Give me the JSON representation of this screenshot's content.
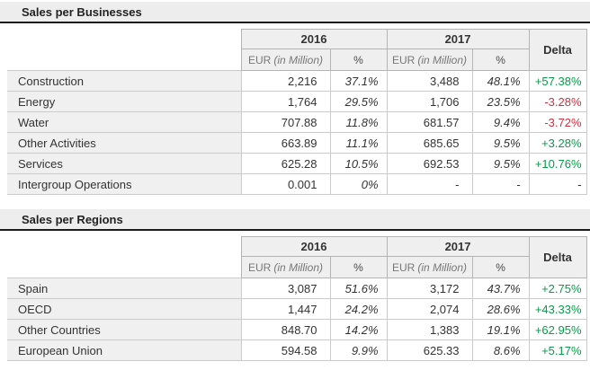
{
  "colors": {
    "positive": "#0a9a4a",
    "negative": "#d22f3f",
    "neutral": "#333333"
  },
  "tables": [
    {
      "title": "Sales per Businesses",
      "year_2016": "2016",
      "year_2017": "2017",
      "delta_label": "Delta",
      "eur_label": "EUR",
      "eur_unit": "(in Million)",
      "pct_label": "%",
      "rows": [
        {
          "label": "Construction",
          "eur_2016": "2,216",
          "pct_2016": "37.1%",
          "eur_2017": "3,488",
          "pct_2017": "48.1%",
          "delta": "+57.38%",
          "trend": "up"
        },
        {
          "label": "Energy",
          "eur_2016": "1,764",
          "pct_2016": "29.5%",
          "eur_2017": "1,706",
          "pct_2017": "23.5%",
          "delta": "-3.28%",
          "trend": "down"
        },
        {
          "label": "Water",
          "eur_2016": "707.88",
          "pct_2016": "11.8%",
          "eur_2017": "681.57",
          "pct_2017": "9.4%",
          "delta": "-3.72%",
          "trend": "down"
        },
        {
          "label": "Other Activities",
          "eur_2016": "663.89",
          "pct_2016": "11.1%",
          "eur_2017": "685.65",
          "pct_2017": "9.5%",
          "delta": "+3.28%",
          "trend": "up"
        },
        {
          "label": "Services",
          "eur_2016": "625.28",
          "pct_2016": "10.5%",
          "eur_2017": "692.53",
          "pct_2017": "9.5%",
          "delta": "+10.76%",
          "trend": "up"
        },
        {
          "label": "Intergroup Operations",
          "eur_2016": "0.001",
          "pct_2016": "0%",
          "eur_2017": "-",
          "pct_2017": "-",
          "delta": "-",
          "trend": "flat"
        }
      ]
    },
    {
      "title": "Sales per Regions",
      "year_2016": "2016",
      "year_2017": "2017",
      "delta_label": "Delta",
      "eur_label": "EUR",
      "eur_unit": "(in Million)",
      "pct_label": "%",
      "rows": [
        {
          "label": "Spain",
          "eur_2016": "3,087",
          "pct_2016": "51.6%",
          "eur_2017": "3,172",
          "pct_2017": "43.7%",
          "delta": "+2.75%",
          "trend": "up"
        },
        {
          "label": "OECD",
          "eur_2016": "1,447",
          "pct_2016": "24.2%",
          "eur_2017": "2,074",
          "pct_2017": "28.6%",
          "delta": "+43.33%",
          "trend": "up"
        },
        {
          "label": "Other Countries",
          "eur_2016": "848.70",
          "pct_2016": "14.2%",
          "eur_2017": "1,383",
          "pct_2017": "19.1%",
          "delta": "+62.95%",
          "trend": "up"
        },
        {
          "label": "European Union",
          "eur_2016": "594.58",
          "pct_2016": "9.9%",
          "eur_2017": "625.33",
          "pct_2017": "8.6%",
          "delta": "+5.17%",
          "trend": "up"
        }
      ]
    }
  ]
}
